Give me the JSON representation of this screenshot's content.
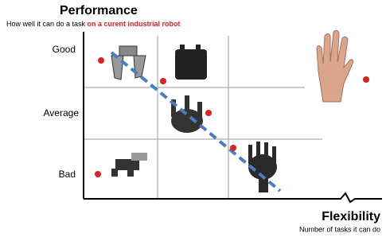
{
  "y_axis": {
    "title": "Performance",
    "subtitle": [
      "How well it can do a task ",
      "on a curent industrial robot"
    ],
    "labels": [
      "Good",
      "Average",
      "Bad"
    ]
  },
  "x_axis": {
    "title": "Flexibility",
    "subtitle": "Number of tasks it can do"
  }
}
